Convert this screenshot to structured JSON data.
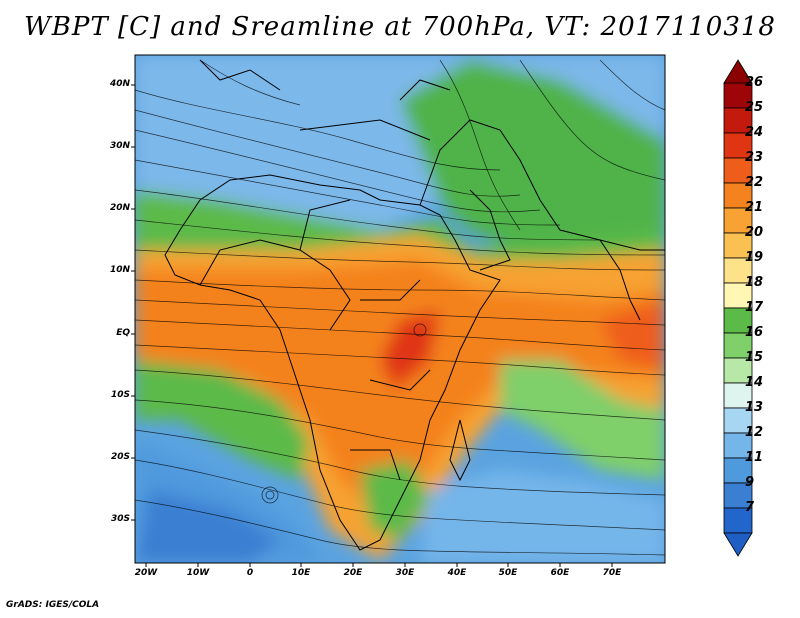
{
  "title": "WBPT [C] and Sreamline at 700hPa, VT: 2017110318",
  "credit": "GrADS: IGES/COLA",
  "lat_labels": [
    "40N",
    "30N",
    "20N",
    "10N",
    "EQ",
    "10S",
    "20S",
    "30S"
  ],
  "lon_labels": [
    "20W",
    "10W",
    "0",
    "10E",
    "20E",
    "30E",
    "40E",
    "50E",
    "60E",
    "70E"
  ],
  "colorbar": {
    "labels": [
      "26",
      "25",
      "24",
      "23",
      "22",
      "21",
      "20",
      "19",
      "18",
      "17",
      "16",
      "15",
      "14",
      "13",
      "12",
      "11",
      "9",
      "7"
    ],
    "colors": [
      "#9e0508",
      "#c41a0e",
      "#e03513",
      "#ef5d1a",
      "#f4821f",
      "#f7a233",
      "#fac152",
      "#fde28a",
      "#fff7b3",
      "#5cba48",
      "#7fcf6b",
      "#b7e8a7",
      "#ddf5ee",
      "#a6d6f2",
      "#74b6ea",
      "#4f99dd",
      "#3a7fd2",
      "#2266cc"
    ],
    "top_color": "#8b0000",
    "bottom_color": "#1f5fc4"
  }
}
